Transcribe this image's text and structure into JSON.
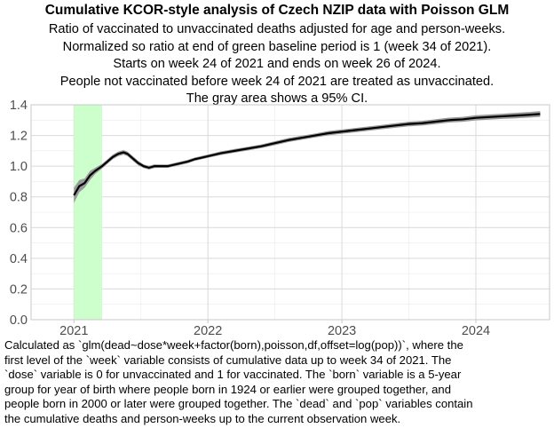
{
  "chart_data": {
    "type": "line",
    "title": "Cumulative KCOR-style analysis of Czech NZIP data with Poisson GLM",
    "subtitle_lines": [
      "Ratio of vaccinated to unvaccinated deaths adjusted for age and person-weeks.",
      "Normalized so ratio at end of green baseline period is 1 (week 34 of 2021).",
      "Starts on week 24 of 2021 and ends on week 26 of 2024.",
      "People not vaccinated before week 24 of 2021 are treated as unvaccinated.",
      "The gray area shows a 95% CI."
    ],
    "caption_lines": [
      "Calculated as `glm(dead~dose*week+factor(born),poisson,df,offset=log(pop))`, where the",
      "first level of the `week` variable consists of cumulative data up to week 34 of 2021. The",
      "`dose` variable is 0 for unvaccinated and 1 for vaccinated. The `born` variable is a 5-year",
      "group for year of birth where people born in 1924 or earlier were grouped together, and",
      "people born in 2000 or later were grouped together. The `dead` and `pop` variables contain",
      "the cumulative deaths and person-weeks up to the current observation week."
    ],
    "xlabel": "",
    "ylabel": "",
    "xlim": [
      2020.68,
      2024.55
    ],
    "ylim": [
      0.0,
      1.4
    ],
    "x_ticks": [
      2021,
      2022,
      2023,
      2024
    ],
    "x_tick_labels": [
      "2021",
      "2022",
      "2023",
      "2024"
    ],
    "y_ticks": [
      0.0,
      0.2,
      0.4,
      0.6,
      0.8,
      1.0,
      1.2,
      1.4
    ],
    "y_tick_labels": [
      "0.0",
      "0.2",
      "0.4",
      "0.6",
      "0.8",
      "1.0",
      "1.2",
      "1.4"
    ],
    "grid": true,
    "baseline_period": {
      "x_start": 2021.0,
      "x_end": 2021.21,
      "color": "#ccffcc"
    },
    "series": [
      {
        "line_color": "#000000",
        "ci_color": "#999999",
        "x": [
          2021.0,
          2021.04,
          2021.08,
          2021.12,
          2021.16,
          2021.21,
          2021.25,
          2021.29,
          2021.33,
          2021.37,
          2021.4,
          2021.44,
          2021.48,
          2021.52,
          2021.56,
          2021.6,
          2021.65,
          2021.7,
          2021.75,
          2021.8,
          2021.85,
          2021.9,
          2021.95,
          2022.0,
          2022.1,
          2022.2,
          2022.3,
          2022.4,
          2022.5,
          2022.6,
          2022.7,
          2022.8,
          2022.9,
          2023.0,
          2023.1,
          2023.2,
          2023.3,
          2023.4,
          2023.5,
          2023.6,
          2023.7,
          2023.8,
          2023.9,
          2024.0,
          2024.1,
          2024.2,
          2024.3,
          2024.4,
          2024.48
        ],
        "y": [
          0.81,
          0.87,
          0.89,
          0.94,
          0.97,
          1.0,
          1.03,
          1.06,
          1.08,
          1.09,
          1.08,
          1.05,
          1.02,
          1.0,
          0.99,
          1.0,
          1.0,
          1.0,
          1.01,
          1.02,
          1.03,
          1.045,
          1.055,
          1.065,
          1.085,
          1.1,
          1.115,
          1.13,
          1.15,
          1.17,
          1.185,
          1.2,
          1.215,
          1.225,
          1.235,
          1.245,
          1.255,
          1.265,
          1.275,
          1.28,
          1.29,
          1.3,
          1.305,
          1.315,
          1.32,
          1.325,
          1.33,
          1.335,
          1.34
        ],
        "ci_low": [
          0.76,
          0.83,
          0.86,
          0.91,
          0.95,
          0.985,
          1.015,
          1.045,
          1.065,
          1.075,
          1.065,
          1.035,
          1.005,
          0.988,
          0.978,
          0.988,
          0.989,
          0.989,
          0.999,
          1.009,
          1.019,
          1.034,
          1.044,
          1.054,
          1.073,
          1.088,
          1.103,
          1.118,
          1.137,
          1.157,
          1.172,
          1.187,
          1.201,
          1.211,
          1.221,
          1.231,
          1.241,
          1.25,
          1.26,
          1.265,
          1.274,
          1.284,
          1.289,
          1.298,
          1.303,
          1.308,
          1.312,
          1.317,
          1.321
        ],
        "ci_high": [
          0.86,
          0.91,
          0.92,
          0.97,
          0.99,
          1.015,
          1.045,
          1.075,
          1.095,
          1.105,
          1.095,
          1.065,
          1.035,
          1.012,
          1.002,
          1.012,
          1.011,
          1.011,
          1.021,
          1.031,
          1.041,
          1.056,
          1.066,
          1.076,
          1.097,
          1.112,
          1.127,
          1.142,
          1.163,
          1.183,
          1.198,
          1.213,
          1.229,
          1.239,
          1.249,
          1.259,
          1.269,
          1.28,
          1.29,
          1.295,
          1.306,
          1.316,
          1.321,
          1.332,
          1.337,
          1.342,
          1.348,
          1.353,
          1.359
        ]
      }
    ]
  }
}
